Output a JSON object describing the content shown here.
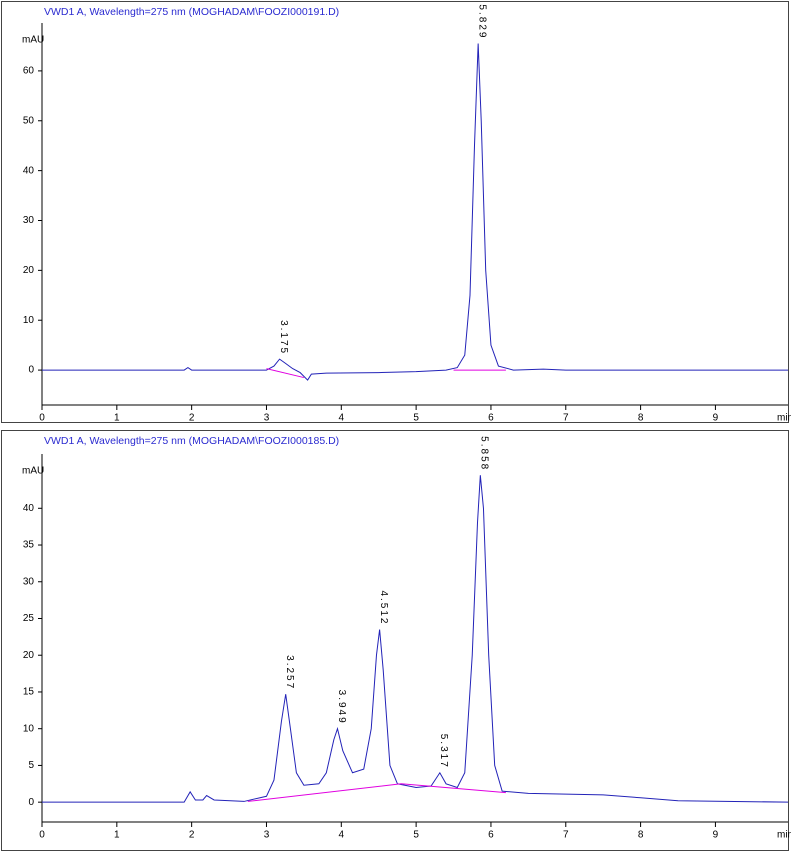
{
  "chart_data": [
    {
      "type": "line",
      "title": "VWD1 A, Wavelength=275 nm (MOGHADAM\\FOOZI000191.D)",
      "y_label": "mAU",
      "x_label": "min",
      "xlim": [
        0,
        9.97
      ],
      "ylim": [
        -7,
        68
      ],
      "xticks": [
        0,
        1,
        2,
        3,
        4,
        5,
        6,
        7,
        8,
        9
      ],
      "yticks": [
        0,
        10,
        20,
        30,
        40,
        50,
        60
      ],
      "x": [
        0,
        1.9,
        1.95,
        2.0,
        2.5,
        3.0,
        3.1,
        3.175,
        3.25,
        3.35,
        3.45,
        3.55,
        3.6,
        3.8,
        4.5,
        5.0,
        5.4,
        5.55,
        5.65,
        5.72,
        5.78,
        5.829,
        5.87,
        5.93,
        6.0,
        6.1,
        6.3,
        6.7,
        7.0,
        9.97
      ],
      "series": [
        {
          "color": "#2323b8",
          "values": [
            0,
            0,
            0.5,
            0,
            0,
            0,
            0.8,
            2.2,
            1.4,
            0.3,
            -0.5,
            -2.0,
            -0.8,
            -0.6,
            -0.5,
            -0.3,
            0,
            0.5,
            3,
            15,
            45,
            65.5,
            50,
            20,
            5,
            0.8,
            0,
            0.2,
            0,
            0
          ]
        }
      ],
      "baseline": {
        "color": "#e000e0",
        "x": [
          3.0,
          3.5,
          null,
          5.5,
          6.2
        ],
        "y": [
          0.3,
          -1.5,
          null,
          0,
          0
        ]
      },
      "peaks": [
        {
          "x": 3.175,
          "y": 2.2
        },
        {
          "x": 5.829,
          "y": 65.5
        }
      ]
    },
    {
      "type": "line",
      "title": "VWD1 A, Wavelength=275 nm (MOGHADAM\\FOOZI000185.D)",
      "y_label": "mAU",
      "x_label": "min",
      "xlim": [
        0,
        9.97
      ],
      "ylim": [
        -2.7,
        46.3
      ],
      "xticks": [
        0,
        1,
        2,
        3,
        4,
        5,
        6,
        7,
        8,
        9
      ],
      "yticks": [
        0,
        5,
        10,
        15,
        20,
        25,
        30,
        35,
        40
      ],
      "x": [
        0,
        1.9,
        1.98,
        2.05,
        2.15,
        2.2,
        2.3,
        2.7,
        3.0,
        3.1,
        3.2,
        3.257,
        3.32,
        3.4,
        3.5,
        3.7,
        3.8,
        3.9,
        3.949,
        4.02,
        4.15,
        4.3,
        4.4,
        4.47,
        4.512,
        4.56,
        4.65,
        4.75,
        5.0,
        5.2,
        5.317,
        5.4,
        5.55,
        5.65,
        5.75,
        5.82,
        5.858,
        5.9,
        5.97,
        6.05,
        6.15,
        6.5,
        7.0,
        7.5,
        8.0,
        8.5,
        9.97
      ],
      "series": [
        {
          "color": "#2323b8",
          "values": [
            0,
            0,
            1.4,
            0.3,
            0.3,
            0.9,
            0.3,
            0.1,
            0.8,
            3,
            11,
            14.7,
            10,
            4,
            2.3,
            2.5,
            4,
            8.5,
            10,
            7,
            4,
            4.5,
            10,
            20,
            23.5,
            18,
            5,
            2.5,
            2,
            2.2,
            4,
            2.5,
            2,
            4,
            20,
            38,
            44.5,
            40,
            20,
            5,
            1.5,
            1.2,
            1.1,
            1.0,
            0.6,
            0.2,
            0
          ]
        }
      ],
      "baseline": {
        "color": "#e000e0",
        "x": [
          2.75,
          4.8,
          6.2
        ],
        "y": [
          0.1,
          2.5,
          1.3
        ]
      },
      "peaks": [
        {
          "x": 3.257,
          "y": 14.7
        },
        {
          "x": 3.949,
          "y": 10
        },
        {
          "x": 4.512,
          "y": 23.5
        },
        {
          "x": 5.317,
          "y": 4
        },
        {
          "x": 5.858,
          "y": 44.5
        }
      ]
    }
  ]
}
